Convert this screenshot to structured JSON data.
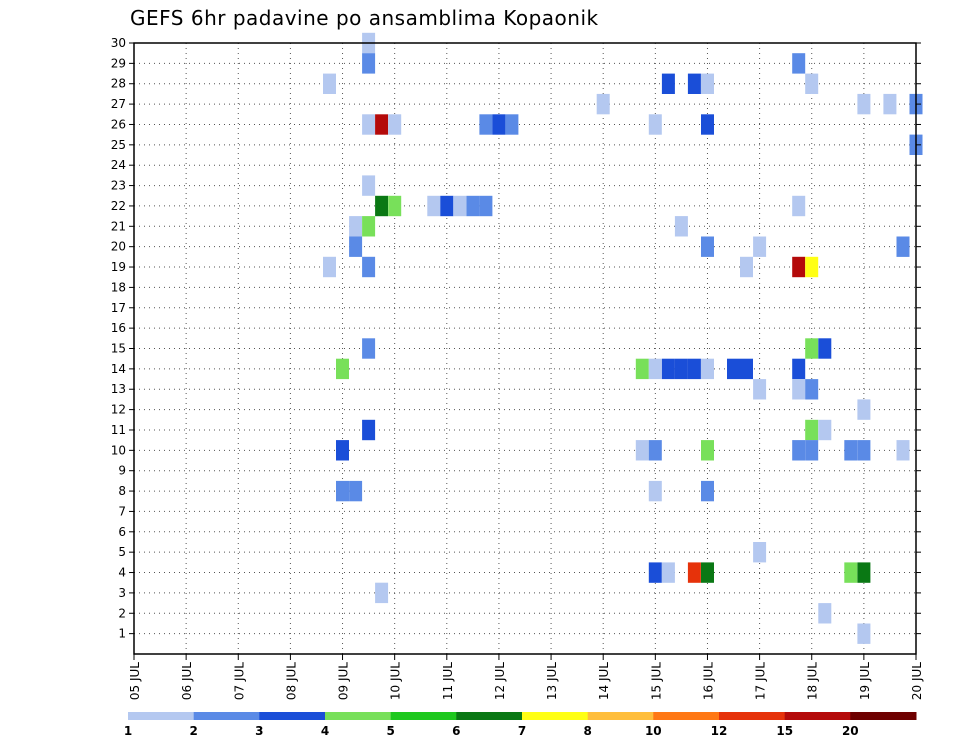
{
  "chart_data": {
    "type": "heatmap",
    "title": "GEFS 6hr padavine po ansamblima Kopaonik",
    "xlabel": "",
    "ylabel": "",
    "x_tick_labels": [
      "05 JUL",
      "06 JUL",
      "07 JUL",
      "08 JUL",
      "09 JUL",
      "10 JUL",
      "11 JUL",
      "12 JUL",
      "13 JUL",
      "14 JUL",
      "15 JUL",
      "16 JUL",
      "17 JUL",
      "18 JUL",
      "19 JUL",
      "20 JUL"
    ],
    "x_range_days": [
      5,
      20
    ],
    "y_tick_labels": [
      "1",
      "2",
      "3",
      "4",
      "5",
      "6",
      "7",
      "8",
      "9",
      "10",
      "11",
      "12",
      "13",
      "14",
      "15",
      "16",
      "17",
      "18",
      "19",
      "20",
      "21",
      "22",
      "23",
      "24",
      "25",
      "26",
      "27",
      "28",
      "29",
      "30"
    ],
    "y_range": [
      0,
      30
    ],
    "grid": true,
    "color_scale": {
      "levels": [
        "1",
        "2",
        "3",
        "4",
        "5",
        "6",
        "7",
        "8",
        "10",
        "12",
        "15",
        "20"
      ],
      "colors": [
        "#b4c8f0",
        "#5a8ae6",
        "#1a4ed8",
        "#78e05a",
        "#1ec81e",
        "#0a7814",
        "#ffff14",
        "#ffbe3c",
        "#ff7814",
        "#e6320a",
        "#b40a0a",
        "#6e0000"
      ]
    },
    "cells": [
      [
        9.5,
        30,
        0
      ],
      [
        9.5,
        29,
        1
      ],
      [
        17.75,
        29,
        1
      ],
      [
        8.75,
        28,
        0
      ],
      [
        15.25,
        28,
        2
      ],
      [
        15.75,
        28,
        2
      ],
      [
        16.0,
        28,
        0
      ],
      [
        18.0,
        28,
        0
      ],
      [
        14.0,
        27,
        0
      ],
      [
        19.0,
        27,
        0
      ],
      [
        19.5,
        27,
        0
      ],
      [
        20.0,
        27,
        1
      ],
      [
        9.5,
        26,
        0
      ],
      [
        9.75,
        26,
        10
      ],
      [
        10.0,
        26,
        0
      ],
      [
        11.75,
        26,
        1
      ],
      [
        12.0,
        26,
        2
      ],
      [
        12.25,
        26,
        1
      ],
      [
        15.0,
        26,
        0
      ],
      [
        16.0,
        26,
        2
      ],
      [
        20.0,
        25,
        1
      ],
      [
        9.5,
        23,
        0
      ],
      [
        9.75,
        22,
        5
      ],
      [
        10.0,
        22,
        3
      ],
      [
        10.75,
        22,
        0
      ],
      [
        11.0,
        22,
        2
      ],
      [
        11.25,
        22,
        0
      ],
      [
        11.5,
        22,
        1
      ],
      [
        11.75,
        22,
        1
      ],
      [
        17.75,
        22,
        0
      ],
      [
        9.25,
        21,
        0
      ],
      [
        9.5,
        21,
        3
      ],
      [
        15.5,
        21,
        0
      ],
      [
        9.25,
        20,
        1
      ],
      [
        16.0,
        20,
        1
      ],
      [
        17.0,
        20,
        0
      ],
      [
        19.75,
        20,
        1
      ],
      [
        8.75,
        19,
        0
      ],
      [
        9.5,
        19,
        1
      ],
      [
        16.75,
        19,
        0
      ],
      [
        17.75,
        19,
        10
      ],
      [
        18.0,
        19,
        6
      ],
      [
        9.5,
        15,
        1
      ],
      [
        18.0,
        15,
        3
      ],
      [
        18.25,
        15,
        2
      ],
      [
        9.0,
        14,
        3
      ],
      [
        14.75,
        14,
        3
      ],
      [
        15.0,
        14,
        0
      ],
      [
        15.25,
        14,
        2
      ],
      [
        15.5,
        14,
        2
      ],
      [
        15.75,
        14,
        2
      ],
      [
        16.0,
        14,
        0
      ],
      [
        16.5,
        14,
        2
      ],
      [
        16.75,
        14,
        2
      ],
      [
        17.75,
        14,
        2
      ],
      [
        17.0,
        13,
        0
      ],
      [
        17.75,
        13,
        0
      ],
      [
        18.0,
        13,
        1
      ],
      [
        19.0,
        12,
        0
      ],
      [
        9.5,
        11,
        2
      ],
      [
        18.0,
        11,
        3
      ],
      [
        18.25,
        11,
        0
      ],
      [
        9.0,
        10,
        2
      ],
      [
        14.75,
        10,
        0
      ],
      [
        15.0,
        10,
        1
      ],
      [
        16.0,
        10,
        3
      ],
      [
        17.75,
        10,
        1
      ],
      [
        18.0,
        10,
        1
      ],
      [
        18.75,
        10,
        1
      ],
      [
        19.0,
        10,
        1
      ],
      [
        19.75,
        10,
        0
      ],
      [
        9.0,
        8,
        1
      ],
      [
        9.25,
        8,
        1
      ],
      [
        15.0,
        8,
        0
      ],
      [
        16.0,
        8,
        1
      ],
      [
        17.0,
        5,
        0
      ],
      [
        15.0,
        4,
        2
      ],
      [
        15.25,
        4,
        0
      ],
      [
        15.75,
        4,
        9
      ],
      [
        16.0,
        4,
        5
      ],
      [
        18.75,
        4,
        3
      ],
      [
        19.0,
        4,
        5
      ],
      [
        9.75,
        3,
        0
      ],
      [
        18.25,
        2,
        0
      ],
      [
        19.0,
        1,
        0
      ]
    ]
  }
}
